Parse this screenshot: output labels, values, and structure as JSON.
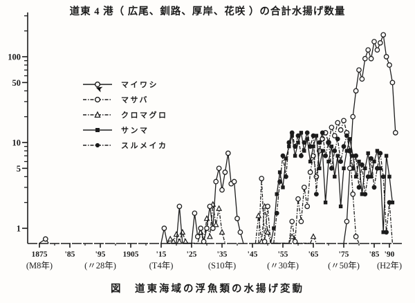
{
  "figure": {
    "title": "道東 4 港（ 広尾、釧路、厚岸、花咲 ）の合計水揚げ数量",
    "caption": "図　道東海域の浮魚類の水揚げ変動"
  },
  "colors": {
    "ink": "#1c1c1c",
    "paper": "#fefdfb"
  },
  "legend": {
    "position": "upper-left-inside",
    "items": [
      {
        "label": "マイワシ",
        "series": "maiwashi",
        "line": "solid",
        "marker": "open-circle"
      },
      {
        "label": "マサバ",
        "series": "masaba",
        "line": "dashed",
        "marker": "open-circle"
      },
      {
        "label": "クロマグロ",
        "series": "kuromaguro",
        "line": "dashed",
        "marker": "open-triangle"
      },
      {
        "label": "サンマ",
        "series": "sanma",
        "line": "solid",
        "marker": "filled-square"
      },
      {
        "label": "スルメイカ",
        "series": "surumeika",
        "line": "dashed",
        "marker": "filled-circle"
      }
    ]
  },
  "chart_data": {
    "type": "line",
    "title": "道東 4 港（ 広尾、釧路、厚岸、花咲 ）の合計水揚げ数量",
    "caption": "図　道東海域の浮魚類の水揚げ変動",
    "y_scale": "log",
    "ylim": [
      0.65,
      300
    ],
    "xlim": [
      1872,
      1993
    ],
    "grid": false,
    "y_ticks_labeled": [
      100,
      50,
      10,
      5,
      1
    ],
    "y_ticks_minor": [
      2,
      3,
      4,
      6,
      7,
      8,
      9,
      20,
      30,
      40,
      60,
      70,
      80,
      90,
      200,
      300
    ],
    "x_ticks": [
      {
        "year": 1875,
        "label": "1875",
        "era": "(M8年)"
      },
      {
        "year": 1885,
        "label": "'85"
      },
      {
        "year": 1895,
        "label": "'95",
        "era": "(〃28年)"
      },
      {
        "year": 1905,
        "label": "1905"
      },
      {
        "year": 1915,
        "label": "'15",
        "era": "(T4年)"
      },
      {
        "year": 1925,
        "label": "'25"
      },
      {
        "year": 1935,
        "label": "'35",
        "era": "(S10年)"
      },
      {
        "year": 1945,
        "label": "'45"
      },
      {
        "year": 1955,
        "label": "'55",
        "era": "(〃30年)"
      },
      {
        "year": 1965,
        "label": "'65"
      },
      {
        "year": 1975,
        "label": "'75",
        "era": "(〃50年)"
      },
      {
        "year": 1985,
        "label": "'85"
      },
      {
        "year": 1990,
        "label": "'90",
        "era": "(H2年)"
      }
    ],
    "x_ticks_minor_years": [
      1880,
      1890,
      1900,
      1910,
      1920,
      1930,
      1940,
      1950,
      1960,
      1970,
      1980
    ],
    "value_zero_means": "at baseline (no recorded landing, marker suppressed)",
    "series": [
      {
        "name": "マイワシ",
        "id": "maiwashi",
        "line": "solid",
        "marker": "open-circle",
        "points": [
          [
            1875,
            0
          ],
          [
            1877,
            0.75
          ],
          [
            1878,
            0
          ],
          [
            1915,
            0
          ],
          [
            1916,
            1.0
          ],
          [
            1917,
            0
          ],
          [
            1920,
            0
          ],
          [
            1921,
            1.8
          ],
          [
            1922,
            0
          ],
          [
            1925,
            0
          ],
          [
            1926,
            1.5
          ],
          [
            1927,
            0.8
          ],
          [
            1928,
            1.0
          ],
          [
            1929,
            0.7
          ],
          [
            1930,
            1.0
          ],
          [
            1931,
            1.8
          ],
          [
            1932,
            1.0
          ],
          [
            1933,
            3.5
          ],
          [
            1934,
            5.0
          ],
          [
            1935,
            2.8
          ],
          [
            1936,
            4.5
          ],
          [
            1937,
            7.5
          ],
          [
            1938,
            3.3
          ],
          [
            1939,
            3.5
          ],
          [
            1940,
            1.3
          ],
          [
            1941,
            0.9
          ],
          [
            1942,
            0
          ],
          [
            1975,
            0
          ],
          [
            1976,
            1.2
          ],
          [
            1977,
            5
          ],
          [
            1978,
            20
          ],
          [
            1979,
            40
          ],
          [
            1980,
            70
          ],
          [
            1981,
            55
          ],
          [
            1982,
            95
          ],
          [
            1983,
            120
          ],
          [
            1984,
            95
          ],
          [
            1985,
            150
          ],
          [
            1986,
            120
          ],
          [
            1987,
            145
          ],
          [
            1988,
            180
          ],
          [
            1989,
            100
          ],
          [
            1990,
            80
          ],
          [
            1991,
            50
          ],
          [
            1992,
            13
          ]
        ]
      },
      {
        "name": "マサバ",
        "id": "masaba",
        "line": "dashed",
        "marker": "open-circle",
        "points": [
          [
            1947,
            0
          ],
          [
            1948,
            3.8
          ],
          [
            1949,
            0.7
          ],
          [
            1950,
            1.8
          ],
          [
            1951,
            0
          ],
          [
            1957,
            0
          ],
          [
            1958,
            1.2
          ],
          [
            1959,
            0.7
          ],
          [
            1960,
            2.2
          ],
          [
            1961,
            1.2
          ],
          [
            1962,
            3.0
          ],
          [
            1963,
            1.8
          ],
          [
            1964,
            4.5
          ],
          [
            1965,
            7.0
          ],
          [
            1966,
            4.0
          ],
          [
            1967,
            8.0
          ],
          [
            1968,
            11
          ],
          [
            1969,
            13
          ],
          [
            1970,
            10
          ],
          [
            1971,
            15
          ],
          [
            1972,
            12
          ],
          [
            1973,
            17
          ],
          [
            1974,
            14
          ],
          [
            1975,
            18
          ],
          [
            1976,
            13
          ],
          [
            1977,
            8
          ],
          [
            1978,
            2.5
          ],
          [
            1979,
            0.8
          ],
          [
            1980,
            0
          ]
        ]
      },
      {
        "name": "クロマグロ",
        "id": "kuromaguro",
        "line": "dashed",
        "marker": "open-triangle",
        "points": [
          [
            1917,
            0
          ],
          [
            1918,
            0.75
          ],
          [
            1919,
            0.7
          ],
          [
            1920,
            0.85
          ],
          [
            1921,
            0.7
          ],
          [
            1922,
            0.9
          ],
          [
            1923,
            0.7
          ],
          [
            1924,
            0
          ],
          [
            1927,
            0
          ],
          [
            1928,
            0.9
          ],
          [
            1929,
            0.7
          ],
          [
            1930,
            1.3
          ],
          [
            1931,
            0.8
          ],
          [
            1932,
            1.9
          ],
          [
            1933,
            1.1
          ],
          [
            1934,
            1.7
          ],
          [
            1935,
            0.9
          ],
          [
            1936,
            0
          ],
          [
            1946,
            0
          ],
          [
            1947,
            1.4
          ],
          [
            1948,
            0.7
          ],
          [
            1949,
            1.8
          ],
          [
            1950,
            0.9
          ],
          [
            1951,
            0
          ],
          [
            1957,
            0
          ],
          [
            1958,
            0.8
          ],
          [
            1959,
            0
          ],
          [
            1964,
            0
          ],
          [
            1965,
            0.8
          ],
          [
            1966,
            0
          ]
        ]
      },
      {
        "name": "サンマ",
        "id": "sanma",
        "line": "solid",
        "marker": "filled-square",
        "points": [
          [
            1951,
            0
          ],
          [
            1952,
            1.0
          ],
          [
            1953,
            2.5
          ],
          [
            1954,
            4.5
          ],
          [
            1955,
            3.0
          ],
          [
            1956,
            6.5
          ],
          [
            1957,
            9.0
          ],
          [
            1958,
            12
          ],
          [
            1959,
            7.0
          ],
          [
            1960,
            10
          ],
          [
            1961,
            13
          ],
          [
            1962,
            8.0
          ],
          [
            1963,
            11
          ],
          [
            1964,
            6.0
          ],
          [
            1965,
            9.0
          ],
          [
            1966,
            12
          ],
          [
            1967,
            5.0
          ],
          [
            1968,
            8.0
          ],
          [
            1969,
            2.0
          ],
          [
            1970,
            6.0
          ],
          [
            1971,
            9.0
          ],
          [
            1972,
            4.0
          ],
          [
            1973,
            7.0
          ],
          [
            1974,
            1.8
          ],
          [
            1975,
            5.0
          ],
          [
            1976,
            8.0
          ],
          [
            1977,
            11
          ],
          [
            1978,
            7.0
          ],
          [
            1979,
            4.0
          ],
          [
            1980,
            6.0
          ],
          [
            1981,
            2.5
          ],
          [
            1982,
            5.0
          ],
          [
            1983,
            7.5
          ],
          [
            1984,
            4.0
          ],
          [
            1985,
            6.0
          ],
          [
            1986,
            8.0
          ],
          [
            1987,
            5.0
          ],
          [
            1988,
            0.9
          ],
          [
            1989,
            7.0
          ],
          [
            1990,
            4.0
          ],
          [
            1991,
            2.0
          ]
        ]
      },
      {
        "name": "スルメイカ",
        "id": "surumeika",
        "line": "dashed",
        "marker": "filled-circle",
        "points": [
          [
            1952,
            0
          ],
          [
            1953,
            1.5
          ],
          [
            1954,
            3.5
          ],
          [
            1955,
            7.0
          ],
          [
            1956,
            4.0
          ],
          [
            1957,
            10
          ],
          [
            1958,
            13
          ],
          [
            1959,
            9.0
          ],
          [
            1960,
            12
          ],
          [
            1961,
            7.0
          ],
          [
            1962,
            10
          ],
          [
            1963,
            13
          ],
          [
            1964,
            9.0
          ],
          [
            1965,
            12
          ],
          [
            1966,
            2.5
          ],
          [
            1967,
            10
          ],
          [
            1968,
            13
          ],
          [
            1969,
            7.0
          ],
          [
            1970,
            10
          ],
          [
            1971,
            5.0
          ],
          [
            1972,
            8.0
          ],
          [
            1973,
            11
          ],
          [
            1974,
            6.0
          ],
          [
            1975,
            9.0
          ],
          [
            1976,
            12
          ],
          [
            1977,
            8.0
          ],
          [
            1978,
            5.0
          ],
          [
            1979,
            7.0
          ],
          [
            1980,
            3.0
          ],
          [
            1981,
            5.5
          ],
          [
            1982,
            2.5
          ],
          [
            1983,
            4.0
          ],
          [
            1984,
            6.5
          ],
          [
            1985,
            3.0
          ],
          [
            1986,
            5.0
          ],
          [
            1987,
            7.5
          ],
          [
            1988,
            4.0
          ],
          [
            1989,
            0.9
          ],
          [
            1990,
            2.0
          ],
          [
            1991,
            0
          ]
        ]
      }
    ]
  },
  "scan_artifacts": {
    "arrow_mark": "➤"
  }
}
